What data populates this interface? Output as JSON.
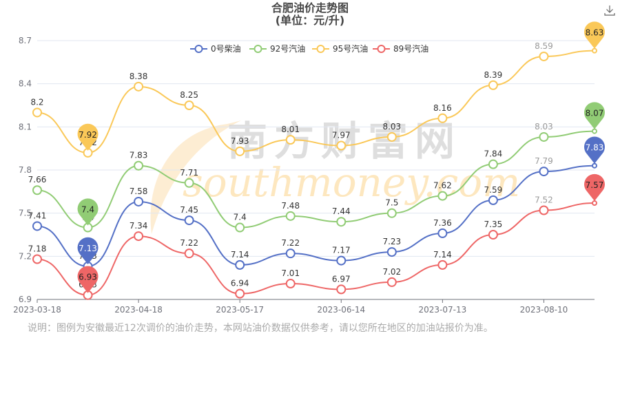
{
  "title": "合肥油价走势图",
  "subtitle": "(单位：元/升)",
  "toolbox": {
    "download_icon": "download-icon"
  },
  "note": "说明：图例为安徽最近12次调价的油价走势，本网站油价数据仅供参考，请以您所在地区的加油站报价为准。",
  "watermark": {
    "cn": "南方财富网",
    "en": "southmoney.com"
  },
  "chart_data": {
    "type": "line",
    "title": "合肥油价走势图",
    "subtitle": "(单位：元/升)",
    "xlabel": "",
    "ylabel": "",
    "ylim": [
      6.9,
      8.7
    ],
    "yticks": [
      6.9,
      7.2,
      7.5,
      7.8,
      8.1,
      8.4,
      8.7
    ],
    "xtick_labels": [
      "2023-03-18",
      "2023-04-18",
      "2023-05-17",
      "2023-06-14",
      "2023-07-13",
      "2023-08-10"
    ],
    "xtick_indices": [
      0,
      2,
      4,
      6,
      8,
      10
    ],
    "grid": true,
    "smooth": true,
    "legend_position": "top",
    "point_count": 12,
    "series": [
      {
        "name": "0号柴油",
        "color": "#5470c6",
        "values": [
          7.41,
          7.13,
          7.58,
          7.45,
          7.14,
          7.22,
          7.17,
          7.23,
          7.36,
          7.59,
          7.79,
          7.83
        ],
        "max_marker": 7.83,
        "min_marker": 7.13
      },
      {
        "name": "92号汽油",
        "color": "#91cc75",
        "values": [
          7.66,
          7.4,
          7.83,
          7.71,
          7.4,
          7.48,
          7.44,
          7.5,
          7.62,
          7.84,
          8.03,
          8.07
        ],
        "max_marker": 8.07,
        "min_marker": 7.4
      },
      {
        "name": "95号汽油",
        "color": "#fac858",
        "values": [
          8.2,
          7.92,
          8.38,
          8.25,
          7.93,
          8.01,
          7.97,
          8.03,
          8.16,
          8.39,
          8.59,
          8.63
        ],
        "max_marker": 8.63,
        "min_marker": 7.92
      },
      {
        "name": "89号汽油",
        "color": "#ee6666",
        "values": [
          7.18,
          6.93,
          7.34,
          7.22,
          6.94,
          7.01,
          6.97,
          7.02,
          7.14,
          7.35,
          7.52,
          7.57
        ],
        "max_marker": 7.57,
        "min_marker": 6.93
      }
    ]
  }
}
